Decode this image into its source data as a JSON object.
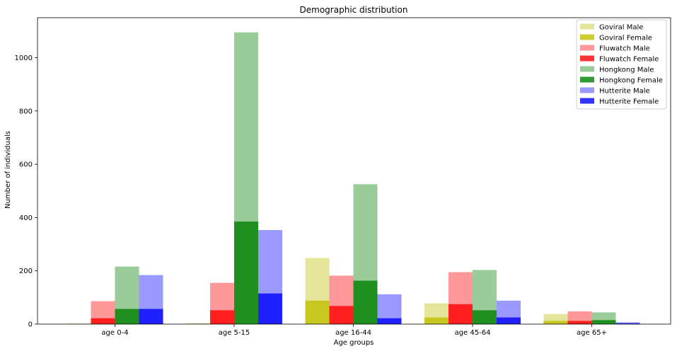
{
  "chart_data": {
    "type": "bar",
    "title": "Demographic distribution",
    "xlabel": "Age groups",
    "ylabel": "Number of individuals",
    "categories": [
      "age 0-4",
      "age 5-15",
      "age 16-44",
      "age 45-64",
      "age 65+"
    ],
    "ylim": [
      0,
      1150
    ],
    "yticks": [
      0,
      200,
      400,
      600,
      800,
      1000
    ],
    "grid": false,
    "legend_position": "top-right",
    "stacking": "female bar drawn over male bar in each group",
    "series": [
      {
        "name": "Goviral Male",
        "group": "Goviral",
        "color": "#bfbf00",
        "alpha": 0.4,
        "values": [
          2,
          3,
          248,
          78,
          38
        ]
      },
      {
        "name": "Goviral Female",
        "group": "Goviral",
        "color": "#bfbf00",
        "alpha": 0.8,
        "values": [
          1,
          1,
          88,
          25,
          12
        ]
      },
      {
        "name": "Fluwatch Male",
        "group": "Fluwatch",
        "color": "#ff0000",
        "alpha": 0.4,
        "values": [
          86,
          155,
          182,
          195,
          48
        ]
      },
      {
        "name": "Fluwatch Female",
        "group": "Fluwatch",
        "color": "#ff0000",
        "alpha": 0.8,
        "values": [
          22,
          52,
          68,
          75,
          12
        ]
      },
      {
        "name": "Hongkong Male",
        "group": "Hongkong",
        "color": "#008000",
        "alpha": 0.4,
        "values": [
          216,
          1095,
          525,
          203,
          44
        ]
      },
      {
        "name": "Hongkong Female",
        "group": "Hongkong",
        "color": "#008000",
        "alpha": 0.8,
        "values": [
          57,
          385,
          163,
          52,
          15
        ]
      },
      {
        "name": "Hutterite Male",
        "group": "Hutterite",
        "color": "#0000ff",
        "alpha": 0.4,
        "values": [
          184,
          353,
          112,
          88,
          7
        ]
      },
      {
        "name": "Hutterite Female",
        "group": "Hutterite",
        "color": "#0000ff",
        "alpha": 0.8,
        "values": [
          57,
          115,
          22,
          25,
          3
        ]
      }
    ]
  }
}
